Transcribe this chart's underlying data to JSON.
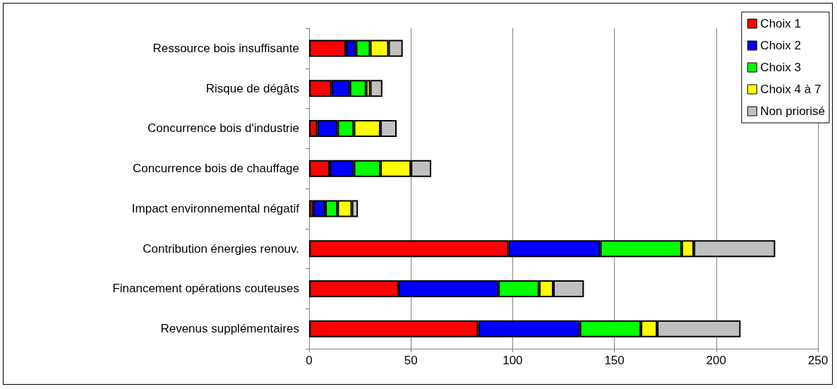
{
  "chart_data": {
    "type": "bar",
    "orientation": "horizontal",
    "stacked": true,
    "categories": [
      "Ressource bois insuffisante",
      "Risque de dégâts",
      "Concurrence bois d'industrie",
      "Concurrence bois de chauffage",
      "Impact environnemental négatif",
      "Contribution énergies renouv.",
      "Financement opérations couteuses",
      "Revenus supplémentaires"
    ],
    "series": [
      {
        "name": "Choix 1",
        "color": "#ff0000",
        "values": [
          18,
          11,
          4,
          10,
          2,
          98,
          44,
          83
        ]
      },
      {
        "name": "Choix 2",
        "color": "#0000ff",
        "values": [
          5,
          9,
          10,
          12,
          6,
          45,
          49,
          50
        ]
      },
      {
        "name": "Choix 3",
        "color": "#00ff00",
        "values": [
          7,
          8,
          8,
          13,
          6,
          40,
          20,
          30
        ]
      },
      {
        "name": "Choix 4 à 7",
        "color": "#ffff00",
        "values": [
          9,
          2,
          13,
          15,
          7,
          6,
          7,
          8
        ]
      },
      {
        "name": "Non priorisé",
        "color": "#c0c0c0",
        "values": [
          7,
          6,
          8,
          10,
          3,
          40,
          15,
          41
        ]
      }
    ],
    "xlim": [
      0,
      250
    ],
    "xticks": [
      0,
      50,
      100,
      150,
      200,
      250
    ],
    "grid": "x",
    "legend": "top right"
  }
}
